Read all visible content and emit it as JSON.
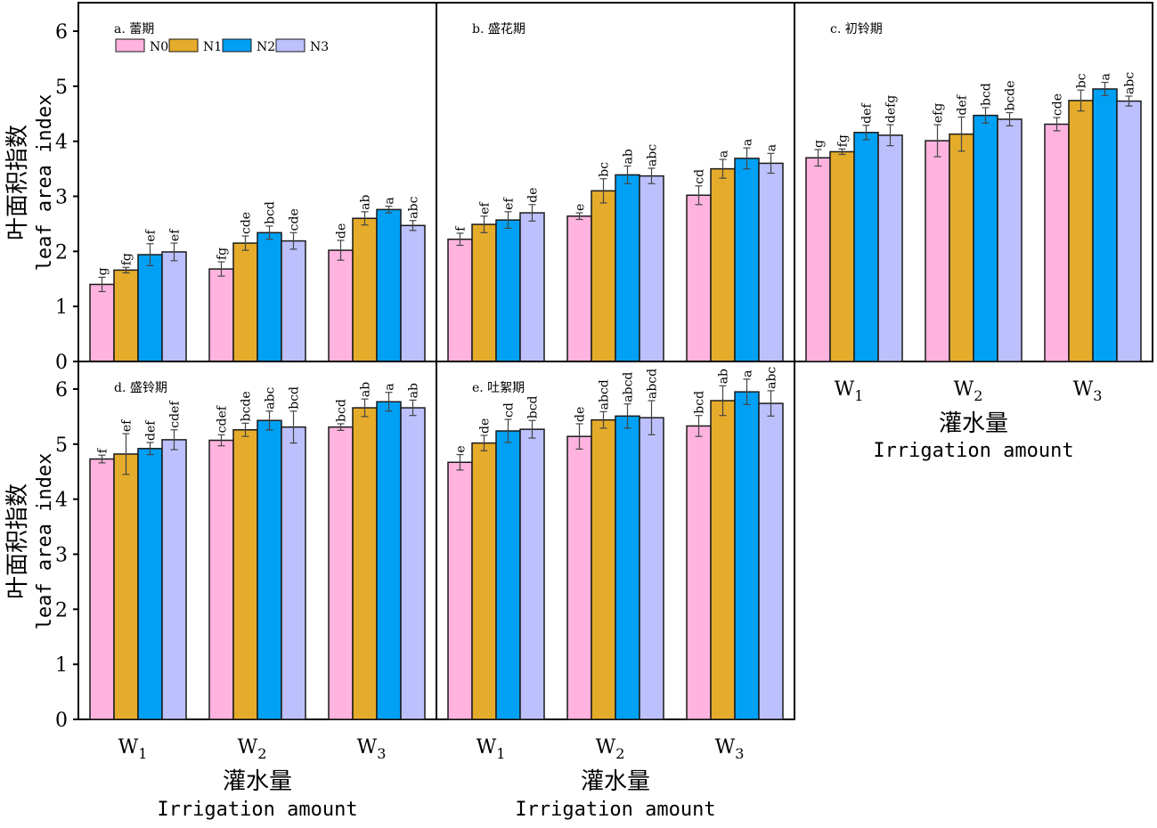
{
  "chart_data": [
    {
      "type": "bar",
      "title": "a. 蕾期",
      "categories": [
        "W1",
        "W2",
        "W3"
      ],
      "series": [
        {
          "name": "N0",
          "values": [
            1.4,
            1.68,
            2.02
          ],
          "errors": [
            0.13,
            0.13,
            0.18
          ],
          "letters": [
            "g",
            "fg",
            "de"
          ]
        },
        {
          "name": "N1",
          "values": [
            1.66,
            2.15,
            2.6
          ],
          "errors": [
            0.05,
            0.13,
            0.12
          ],
          "letters": [
            "fg",
            "cde",
            "ab"
          ]
        },
        {
          "name": "N2",
          "values": [
            1.94,
            2.34,
            2.76
          ],
          "errors": [
            0.2,
            0.12,
            0.06
          ],
          "letters": [
            "ef",
            "bcd",
            "a"
          ]
        },
        {
          "name": "N3",
          "values": [
            1.99,
            2.19,
            2.47
          ],
          "errors": [
            0.16,
            0.15,
            0.09
          ],
          "letters": [
            "ef",
            "cde",
            "abc"
          ]
        }
      ]
    },
    {
      "type": "bar",
      "title": "b. 盛花期",
      "categories": [
        "W1",
        "W2",
        "W3"
      ],
      "series": [
        {
          "name": "N0",
          "values": [
            2.22,
            2.64,
            3.02
          ],
          "errors": [
            0.11,
            0.06,
            0.17
          ],
          "letters": [
            "f",
            "e",
            "cd"
          ]
        },
        {
          "name": "N1",
          "values": [
            2.49,
            3.1,
            3.5
          ],
          "errors": [
            0.15,
            0.22,
            0.17
          ],
          "letters": [
            "ef",
            "bc",
            "a"
          ]
        },
        {
          "name": "N2",
          "values": [
            2.57,
            3.39,
            3.69
          ],
          "errors": [
            0.15,
            0.16,
            0.19
          ],
          "letters": [
            "ef",
            "ab",
            "a"
          ]
        },
        {
          "name": "N3",
          "values": [
            2.7,
            3.37,
            3.6
          ],
          "errors": [
            0.15,
            0.14,
            0.18
          ],
          "letters": [
            "de",
            "abc",
            "a"
          ]
        }
      ]
    },
    {
      "type": "bar",
      "title": "c. 初铃期",
      "categories": [
        "W1",
        "W2",
        "W3"
      ],
      "series": [
        {
          "name": "N0",
          "values": [
            3.7,
            4.01,
            4.31
          ],
          "errors": [
            0.15,
            0.29,
            0.12
          ],
          "letters": [
            "g",
            "efg",
            "cde"
          ]
        },
        {
          "name": "N1",
          "values": [
            3.81,
            4.13,
            4.74
          ],
          "errors": [
            0.05,
            0.31,
            0.19
          ],
          "letters": [
            "fg",
            "def",
            "bc"
          ]
        },
        {
          "name": "N2",
          "values": [
            4.16,
            4.47,
            4.95
          ],
          "errors": [
            0.13,
            0.14,
            0.12
          ],
          "letters": [
            "def",
            "bcd",
            "a"
          ]
        },
        {
          "name": "N3",
          "values": [
            4.11,
            4.4,
            4.73
          ],
          "errors": [
            0.19,
            0.12,
            0.09
          ],
          "letters": [
            "defg",
            "bcde",
            "abc"
          ]
        }
      ]
    },
    {
      "type": "bar",
      "title": "d. 盛铃期",
      "categories": [
        "W1",
        "W2",
        "W3"
      ],
      "series": [
        {
          "name": "N0",
          "values": [
            4.73,
            5.07,
            5.31
          ],
          "errors": [
            0.07,
            0.1,
            0.06
          ],
          "letters": [
            "f",
            "cdef",
            "bcd"
          ]
        },
        {
          "name": "N1",
          "values": [
            4.82,
            5.26,
            5.66
          ],
          "errors": [
            0.37,
            0.12,
            0.16
          ],
          "letters": [
            "ef",
            "bcde",
            "ab"
          ]
        },
        {
          "name": "N2",
          "values": [
            4.92,
            5.43,
            5.77
          ],
          "errors": [
            0.11,
            0.17,
            0.17
          ],
          "letters": [
            "def",
            "abc",
            "a"
          ]
        },
        {
          "name": "N3",
          "values": [
            5.08,
            5.31,
            5.66
          ],
          "errors": [
            0.18,
            0.29,
            0.14
          ],
          "letters": [
            "cdef",
            "bcd",
            "ab"
          ]
        }
      ]
    },
    {
      "type": "bar",
      "title": "e. 吐絮期",
      "categories": [
        "W1",
        "W2",
        "W3"
      ],
      "series": [
        {
          "name": "N0",
          "values": [
            4.67,
            5.14,
            5.33
          ],
          "errors": [
            0.14,
            0.23,
            0.19
          ],
          "letters": [
            "e",
            "de",
            "bcd"
          ]
        },
        {
          "name": "N1",
          "values": [
            5.02,
            5.44,
            5.79
          ],
          "errors": [
            0.14,
            0.15,
            0.27
          ],
          "letters": [
            "de",
            "abcd",
            "ab"
          ]
        },
        {
          "name": "N2",
          "values": [
            5.24,
            5.51,
            5.95
          ],
          "errors": [
            0.21,
            0.22,
            0.23
          ],
          "letters": [
            "cd",
            "abcd",
            "a"
          ]
        },
        {
          "name": "N3",
          "values": [
            5.27,
            5.48,
            5.74
          ],
          "errors": [
            0.16,
            0.31,
            0.23
          ],
          "letters": [
            "bcd",
            "abcd",
            "abc"
          ]
        }
      ]
    }
  ],
  "axes": {
    "ylim": [
      0,
      6.5
    ],
    "yticks": [
      "0",
      "1",
      "2",
      "3",
      "4",
      "5",
      "6"
    ],
    "ylabel_cn": "叶面积指数",
    "ylabel_en": "leaf area index",
    "xlabel_cn": "灌水量",
    "xlabel_en": "Irrigation amount",
    "xticks": [
      {
        "base": "W",
        "sub": "1"
      },
      {
        "base": "W",
        "sub": "2"
      },
      {
        "base": "W",
        "sub": "3"
      }
    ]
  },
  "legend": {
    "position": "top-left of panel a",
    "items": [
      "N0",
      "N1",
      "N2",
      "N3"
    ]
  },
  "colors": {
    "N0": "#FFB3DE",
    "N1": "#E5AC2B",
    "N2": "#00A0F4",
    "N3": "#BCC1FD"
  }
}
